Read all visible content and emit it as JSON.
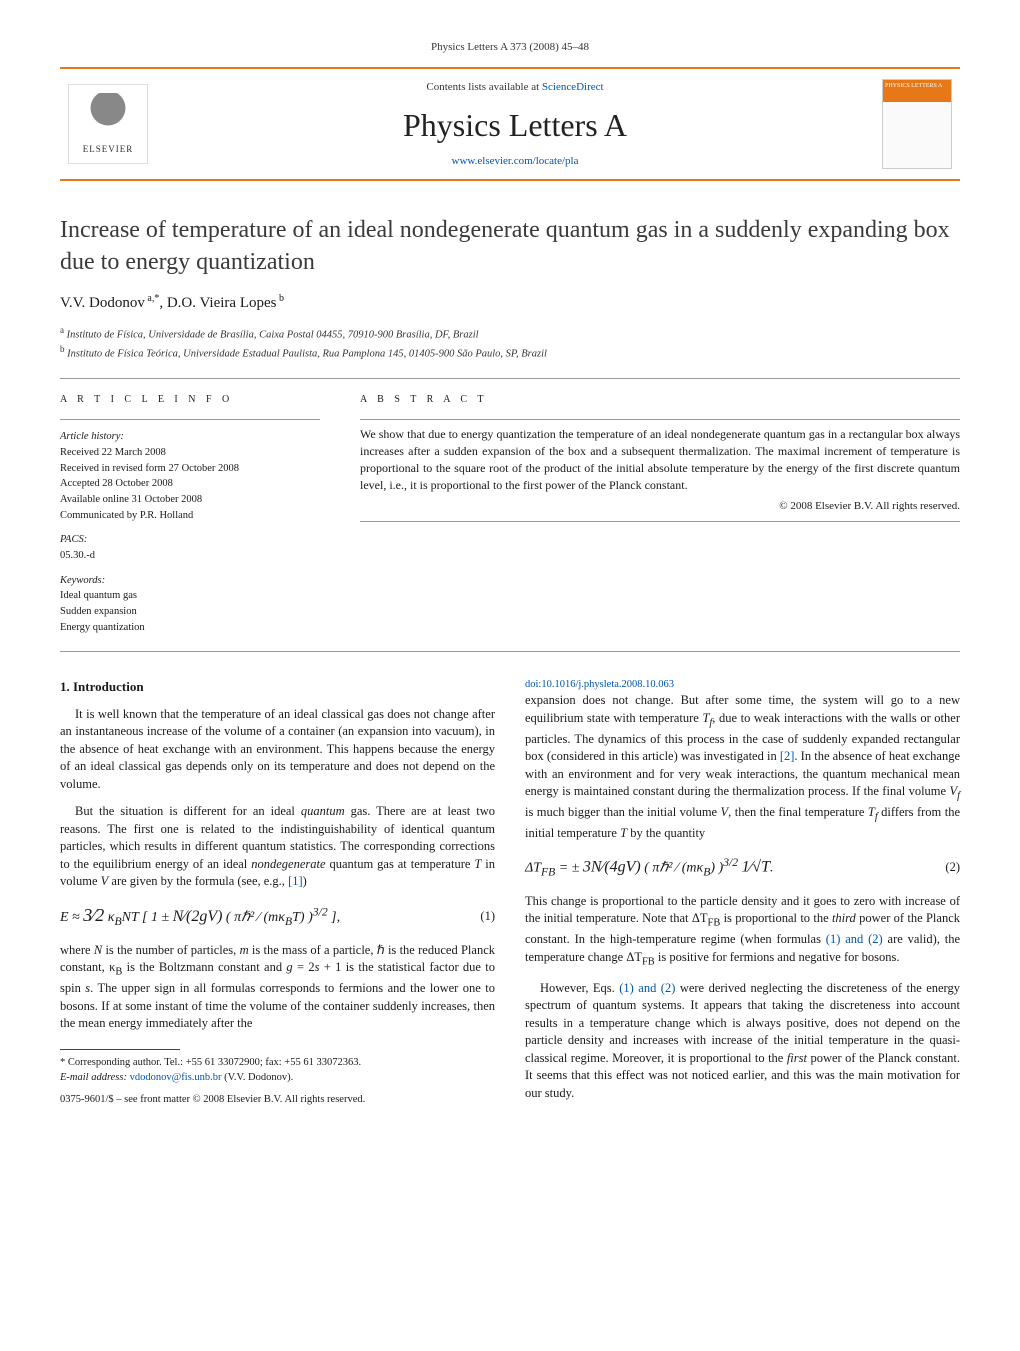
{
  "journal_ref": "Physics Letters A 373 (2008) 45–48",
  "banner": {
    "publisher_name": "ELSEVIER",
    "contents_prefix": "Contents lists available at ",
    "contents_link": "ScienceDirect",
    "journal_title": "Physics Letters A",
    "homepage_url": "www.elsevier.com/locate/pla",
    "cover_label": "PHYSICS LETTERS A",
    "accent_color": "#e77817",
    "link_color": "#0055aa"
  },
  "article": {
    "title": "Increase of temperature of an ideal nondegenerate quantum gas in a suddenly expanding box due to energy quantization",
    "authors_html": "V.V. Dodonov<sup>a,*</sup>, D.O. Vieira Lopes<sup>b</sup>",
    "affiliations": [
      {
        "marker": "a",
        "text": "Instituto de Física, Universidade de Brasília, Caixa Postal 04455, 70910-900 Brasília, DF, Brazil"
      },
      {
        "marker": "b",
        "text": "Instituto de Física Teórica, Universidade Estadual Paulista, Rua Pamplona 145, 01405-900 São Paulo, SP, Brazil"
      }
    ]
  },
  "info": {
    "heading": "A R T I C L E   I N F O",
    "history_head": "Article history:",
    "history": [
      "Received 22 March 2008",
      "Received in revised form 27 October 2008",
      "Accepted 28 October 2008",
      "Available online 31 October 2008",
      "Communicated by P.R. Holland"
    ],
    "pacs_head": "PACS:",
    "pacs": "05.30.-d",
    "keywords_head": "Keywords:",
    "keywords": [
      "Ideal quantum gas",
      "Sudden expansion",
      "Energy quantization"
    ]
  },
  "abstract": {
    "heading": "A B S T R A C T",
    "text": "We show that due to energy quantization the temperature of an ideal nondegenerate quantum gas in a rectangular box always increases after a sudden expansion of the box and a subsequent thermalization. The maximal increment of temperature is proportional to the square root of the product of the initial absolute temperature by the energy of the first discrete quantum level, i.e., it is proportional to the first power of the Planck constant.",
    "copyright": "© 2008 Elsevier B.V. All rights reserved."
  },
  "body": {
    "section_title": "1. Introduction",
    "p1": "It is well known that the temperature of an ideal classical gas does not change after an instantaneous increase of the volume of a container (an expansion into vacuum), in the absence of heat exchange with an environment. This happens because the energy of an ideal classical gas depends only on its temperature and does not depend on the volume.",
    "p2": "But the situation is different for an ideal quantum gas. There are at least two reasons. The first one is related to the indistinguishability of identical quantum particles, which results in different quantum statistics. The corresponding corrections to the equilibrium energy of an ideal nondegenerate quantum gas at temperature T in volume V are given by the formula (see, e.g., [1])",
    "eq1": "E ≈ (3/2) κ_B N T [ 1 ± (N / (2gV)) ( π ℏ² / (m κ_B T) )^{3/2} ],",
    "eq1_num": "(1)",
    "p3": "where N is the number of particles, m is the mass of a particle, ℏ is the reduced Planck constant, κ_B is the Boltzmann constant and g = 2s + 1 is the statistical factor due to spin s. The upper sign in all formulas corresponds to fermions and the lower one to bosons. If at some instant of time the volume of the container suddenly increases, then the mean energy immediately after the",
    "p4": "expansion does not change. But after some time, the system will go to a new equilibrium state with temperature T_f, due to weak interactions with the walls or other particles. The dynamics of this process in the case of suddenly expanded rectangular box (considered in this article) was investigated in [2]. In the absence of heat exchange with an environment and for very weak interactions, the quantum mechanical mean energy is maintained constant during the thermalization process. If the final volume V_f is much bigger than the initial volume V, then the final temperature T_f differs from the initial temperature T by the quantity",
    "eq2": "ΔT_{FB} = ± (3N / (4gV)) ( π ℏ² / (m κ_B) )^{3/2} (1 / √T).",
    "eq2_num": "(2)",
    "p5": "This change is proportional to the particle density and it goes to zero with increase of the initial temperature. Note that ΔT_{FB} is proportional to the third power of the Planck constant. In the high-temperature regime (when formulas (1) and (2) are valid), the temperature change ΔT_{FB} is positive for fermions and negative for bosons.",
    "p6": "However, Eqs. (1) and (2) were derived neglecting the discreteness of the energy spectrum of quantum systems. It appears that taking the discreteness into account results in a temperature change which is always positive, does not depend on the particle density and increases with increase of the initial temperature in the quasi-classical regime. Moreover, it is proportional to the first power of the Planck constant. It seems that this effect was not noticed earlier, and this was the main motivation for our study."
  },
  "footnotes": {
    "corresponding": "Corresponding author. Tel.: +55 61 33072900; fax: +55 61 33072363.",
    "email_label": "E-mail address:",
    "email": "vdodonov@fis.unb.br",
    "email_name": "(V.V. Dodonov).",
    "front_matter": "0375-9601/$ – see front matter © 2008 Elsevier B.V. All rights reserved.",
    "doi_label": "doi:",
    "doi": "10.1016/j.physleta.2008.10.063"
  }
}
